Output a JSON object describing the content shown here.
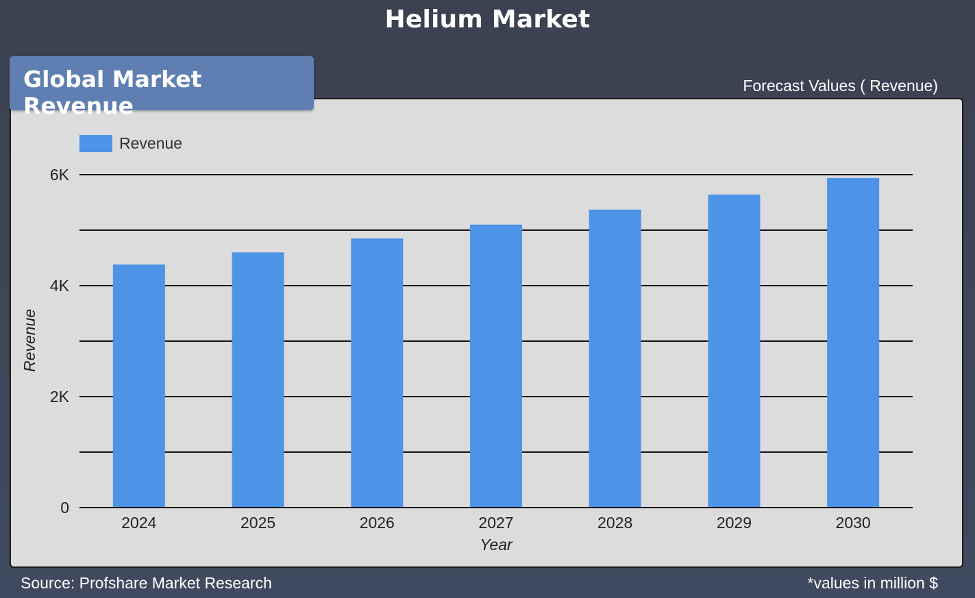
{
  "page": {
    "title": "Helium Market",
    "section_label": "Global Market Revenue",
    "forecast_label": "Forecast Values ( Revenue)",
    "source": "Source: Profshare Market Research",
    "note": "*values in million $"
  },
  "colors": {
    "background": "#3f4759",
    "panel": "#dcdcdc",
    "tab": "#5f7fb3",
    "bar": "#4d94e8",
    "text_light": "#ffffff",
    "text_dark": "#222222"
  },
  "chart_data": {
    "type": "bar",
    "categories": [
      "2024",
      "2025",
      "2026",
      "2027",
      "2028",
      "2029",
      "2030"
    ],
    "series": [
      {
        "name": "Revenue",
        "values": [
          4380,
          4600,
          4850,
          5100,
          5370,
          5640,
          5940
        ]
      }
    ],
    "xlabel": "Year",
    "ylabel": "Revenue",
    "ylim": [
      0,
      6000
    ],
    "yticks": [
      0,
      2000,
      4000,
      6000
    ],
    "ytick_labels": [
      "0",
      "2K",
      "4K",
      "6K"
    ],
    "grid": true,
    "legend": "top-left"
  }
}
